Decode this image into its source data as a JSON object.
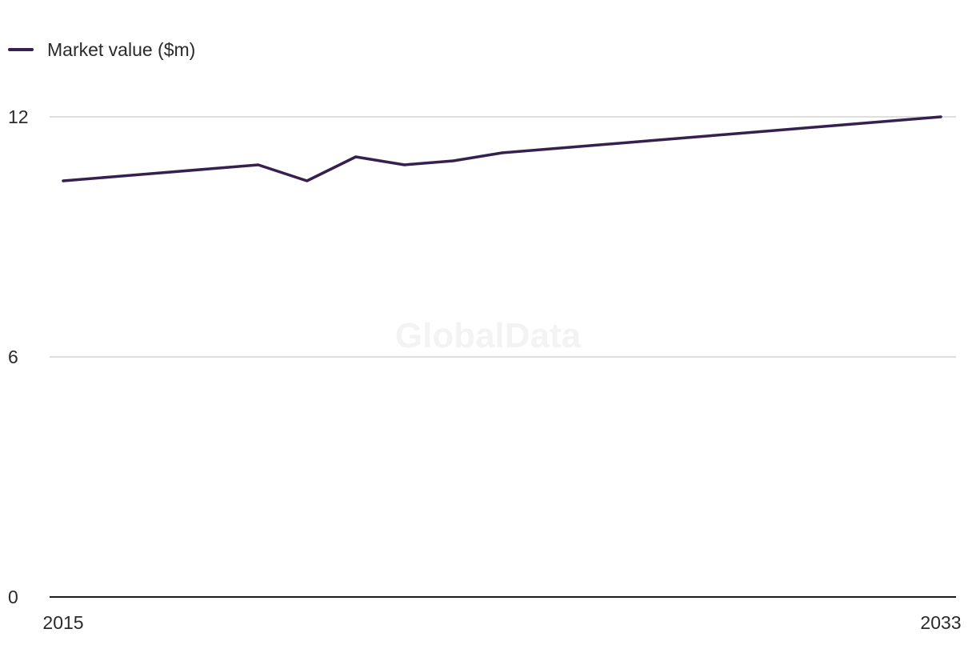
{
  "legend": {
    "label": "Market value ($m)"
  },
  "watermark": "GlobalData",
  "colors": {
    "series": "#35204f",
    "grid": "#d4d4d4",
    "axis": "#1a1a1a"
  },
  "chart_data": {
    "type": "line",
    "title": "",
    "xlabel": "",
    "ylabel": "",
    "x": [
      2015,
      2016,
      2017,
      2018,
      2019,
      2020,
      2021,
      2022,
      2023,
      2024,
      2025,
      2026,
      2027,
      2028,
      2029,
      2030,
      2031,
      2032,
      2033
    ],
    "x_tick_labels": [
      "2015",
      "2033"
    ],
    "y_ticks": [
      0,
      6,
      12
    ],
    "ylim": [
      0,
      12
    ],
    "grid": true,
    "legend_position": "top-left",
    "series": [
      {
        "name": "Market value ($m)",
        "values": [
          10.4,
          10.5,
          10.6,
          10.7,
          10.8,
          10.4,
          11.0,
          10.8,
          10.9,
          11.1,
          11.2,
          11.3,
          11.4,
          11.5,
          11.6,
          11.7,
          11.8,
          11.9,
          12.0
        ]
      }
    ]
  }
}
